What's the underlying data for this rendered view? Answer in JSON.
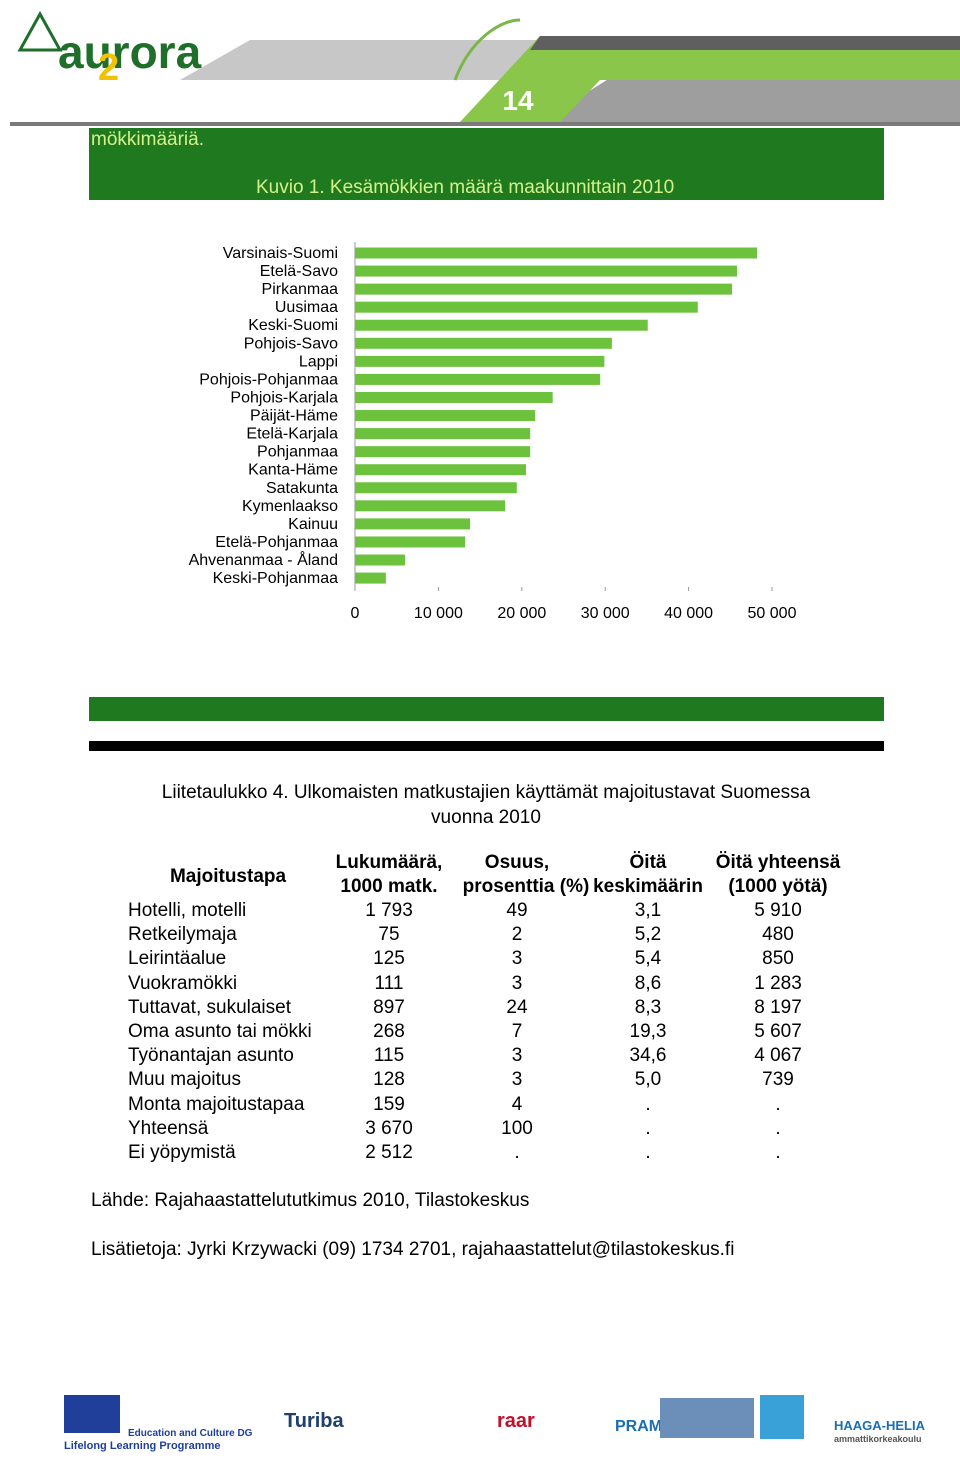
{
  "header": {
    "logo": "aurora",
    "logo_number": "2",
    "page_number": "14"
  },
  "intro_fragment": "mökkimääriä.",
  "chart_data": {
    "type": "bar",
    "orientation": "horizontal",
    "title": "Kuvio 1. Kesämökkien määrä maakunnittain 2010",
    "categories": [
      "Varsinais-Suomi",
      "Etelä-Savo",
      "Pirkanmaa",
      "Uusimaa",
      "Keski-Suomi",
      "Pohjois-Savo",
      "Lappi",
      "Pohjois-Pohjanmaa",
      "Pohjois-Karjala",
      "Päijät-Häme",
      "Etelä-Karjala",
      "Pohjanmaa",
      "Kanta-Häme",
      "Satakunta",
      "Kymenlaakso",
      "Kainuu",
      "Etelä-Pohjanmaa",
      "Ahvenanmaa - Åland",
      "Keski-Pohjanmaa"
    ],
    "values": [
      48200,
      45800,
      45200,
      41100,
      35100,
      30800,
      29900,
      29400,
      23700,
      21600,
      21000,
      21000,
      20500,
      19400,
      18000,
      13800,
      13200,
      6000,
      3700
    ],
    "color": "#6cc13d",
    "xlim": [
      0,
      50000
    ],
    "xticks": [
      0,
      {
        "value": 10000,
        "label": "10 000"
      },
      {
        "value": 20000,
        "label": "20 000"
      },
      {
        "value": 30000,
        "label": "30 000"
      },
      {
        "value": 40000,
        "label": "40 000"
      },
      {
        "value": 50000,
        "label": "50 000"
      }
    ],
    "grid": false
  },
  "table": {
    "title": [
      "Liitetaulukko 4. Ulkomaisten matkustajien käyttämät majoitustavat Suomessa",
      "vuonna 2010"
    ],
    "columns": [
      [
        "Majoitustapa"
      ],
      [
        "Lukumäärä,",
        "1000 matk."
      ],
      [
        "Osuus,",
        "prosenttia (%)"
      ],
      [
        "Öitä",
        "keskimäärin"
      ],
      [
        "Öitä yhteensä",
        "(1000 yötä)"
      ]
    ],
    "rows": [
      [
        "Hotelli, motelli",
        "1 793",
        "49",
        "3,1",
        "5 910"
      ],
      [
        "Retkeilymaja",
        "75",
        "2",
        "5,2",
        "480"
      ],
      [
        "Leirintäalue",
        "125",
        "3",
        "5,4",
        "850"
      ],
      [
        "Vuokramökki",
        "111",
        "3",
        "8,6",
        "1 283"
      ],
      [
        "Tuttavat, sukulaiset",
        "897",
        "24",
        "8,3",
        "8 197"
      ],
      [
        "Oma asunto tai mökki",
        "268",
        "7",
        "19,3",
        "5 607"
      ],
      [
        "Työnantajan asunto",
        "115",
        "3",
        "34,6",
        "4 067"
      ],
      [
        "Muu majoitus",
        "128",
        "3",
        "5,0",
        "739"
      ],
      [
        "Monta majoitustapaa",
        "159",
        "4",
        ".",
        "."
      ],
      [
        "Yhteensä",
        "3 670",
        "100",
        ".",
        "."
      ],
      [
        "Ei yöpymistä",
        "2 512",
        ".",
        ".",
        "."
      ]
    ]
  },
  "source": "Lähde: Rajahaastattelututkimus 2010, Tilastokeskus",
  "contact": "Lisätietoja: Jyrki Krzywacki (09) 1734 2701, rajahaastattelut@tilastokeskus.fi",
  "footer": {
    "logos": [
      "Education and Culture DG",
      "Lifelong Learning Programme",
      "Turiba",
      "raar",
      "PRAMES",
      "HAAGA-HELIA",
      "ammattikorkeakoulu"
    ]
  }
}
